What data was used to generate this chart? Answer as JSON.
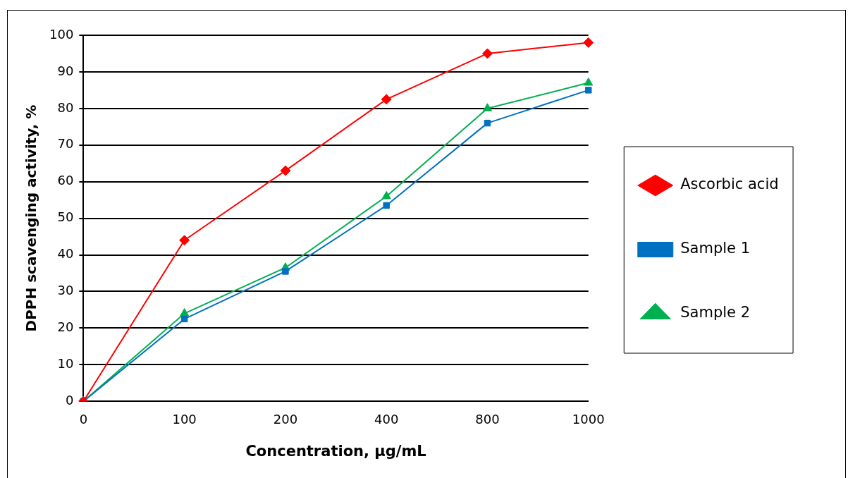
{
  "chart_data": {
    "type": "line",
    "xlabel": "Concentration, µg/mL",
    "ylabel": "DPPH scavenging activity, %",
    "categories": [
      "0",
      "100",
      "200",
      "400",
      "800",
      "1000"
    ],
    "series": [
      {
        "name": "Ascorbic acid",
        "color": "#ff0000",
        "marker": "diamond",
        "values": [
          0,
          44,
          63,
          82.5,
          95,
          98
        ]
      },
      {
        "name": "Sample 1",
        "color": "#0070c0",
        "marker": "square",
        "values": [
          0,
          22.5,
          35.5,
          53.5,
          76,
          85
        ]
      },
      {
        "name": "Sample 2",
        "color": "#00b050",
        "marker": "triangle",
        "values": [
          0,
          24,
          36.5,
          56,
          80,
          87
        ]
      }
    ],
    "ylim": [
      0,
      100
    ],
    "yticks": [
      0,
      10,
      20,
      30,
      40,
      50,
      60,
      70,
      80,
      90,
      100
    ],
    "grid": "y",
    "legend": "right",
    "line_style": "solid"
  }
}
